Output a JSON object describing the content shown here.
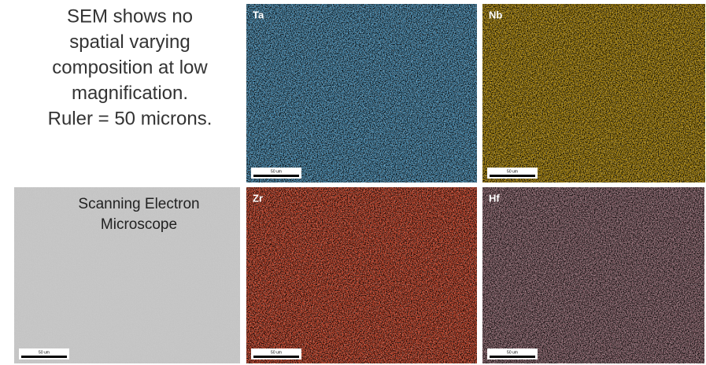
{
  "caption": {
    "lines": [
      "SEM shows no",
      "spatial varying",
      "composition at low",
      "magnification.",
      "Ruler = 50 microns."
    ]
  },
  "panels": [
    {
      "label": "Ta",
      "scale_label": "50 um"
    },
    {
      "label": "Nb",
      "scale_label": "50 um"
    },
    {
      "label_lines": [
        "Scanning Electron",
        "Microscope"
      ],
      "scale_label": "50 um"
    },
    {
      "label": "Zr",
      "scale_label": "50 um"
    },
    {
      "label": "Hf",
      "scale_label": "50 um"
    }
  ]
}
